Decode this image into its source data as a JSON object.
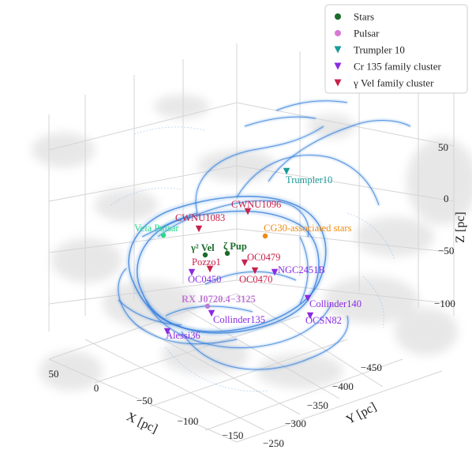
{
  "chart_data": {
    "type": "scatter",
    "projection": "3d",
    "legend": {
      "placement": "top-right",
      "entries": [
        {
          "label": "Stars",
          "color": "#1a6b2a",
          "marker": "circle"
        },
        {
          "label": "Pulsar",
          "color": "#d67ad6",
          "marker": "circle"
        },
        {
          "label": "Trumpler 10",
          "color": "#1a9a9a",
          "marker": "triangle-down"
        },
        {
          "label": "Cr 135 family cluster",
          "color": "#8a2be2",
          "marker": "triangle-down"
        },
        {
          "label": "γ Vel family cluster",
          "color": "#c8204a",
          "marker": "triangle-down"
        }
      ]
    },
    "axes": {
      "x": {
        "label": "X [pc]",
        "ticks": [
          "50",
          "0",
          "−50",
          "−100",
          "−150"
        ]
      },
      "y": {
        "label": "Y [pc]",
        "ticks": [
          "−250",
          "−300",
          "−350",
          "−400",
          "−450"
        ]
      },
      "z": {
        "label": "Z [pc]",
        "ticks": [
          "50",
          "0",
          "−50",
          "−100"
        ]
      }
    },
    "grid": true,
    "points": [
      {
        "name": "Trumpler10",
        "group": "Trumpler 10",
        "color": "#1a9a9a",
        "marker": "triangle-down"
      },
      {
        "name": "CWNU1096",
        "group": "γ Vel family cluster",
        "color": "#c8204a",
        "marker": "triangle-down"
      },
      {
        "name": "CWNU1083",
        "group": "γ Vel family cluster",
        "color": "#c8204a",
        "marker": "triangle-down"
      },
      {
        "name": "Vela Pulsar",
        "group": "Pulsar",
        "color": "#22dd88",
        "marker": "circle"
      },
      {
        "name": "CG30-associated stars",
        "group": "Stars",
        "color": "#f08a10",
        "marker": "circle"
      },
      {
        "name": "γ² Vel",
        "group": "Stars",
        "color": "#1a6b2a",
        "marker": "circle"
      },
      {
        "name": "ζ Pup",
        "group": "Stars",
        "color": "#1a6b2a",
        "marker": "circle"
      },
      {
        "name": "OC0479",
        "group": "γ Vel family cluster",
        "color": "#c8204a",
        "marker": "triangle-down"
      },
      {
        "name": "Pozzo1",
        "group": "γ Vel family cluster",
        "color": "#c8204a",
        "marker": "triangle-down"
      },
      {
        "name": "OC0450",
        "group": "Cr 135 family cluster",
        "color": "#8a2be2",
        "marker": "triangle-down"
      },
      {
        "name": "OC0470",
        "group": "γ Vel family cluster",
        "color": "#c8204a",
        "marker": "triangle-down"
      },
      {
        "name": "NGC2451B",
        "group": "Cr 135 family cluster",
        "color": "#8a2be2",
        "marker": "triangle-down"
      },
      {
        "name": "RX J0720.4−3125",
        "group": "Pulsar",
        "color": "#c07ad6",
        "marker": "circle"
      },
      {
        "name": "Collinder135",
        "group": "Cr 135 family cluster",
        "color": "#8a2be2",
        "marker": "triangle-down"
      },
      {
        "name": "Collinder140",
        "group": "Cr 135 family cluster",
        "color": "#8a2be2",
        "marker": "triangle-down"
      },
      {
        "name": "OCSN82",
        "group": "Cr 135 family cluster",
        "color": "#8a2be2",
        "marker": "triangle-down"
      },
      {
        "name": "Alessi36",
        "group": "Cr 135 family cluster",
        "color": "#8a2be2",
        "marker": "triangle-down"
      }
    ]
  }
}
